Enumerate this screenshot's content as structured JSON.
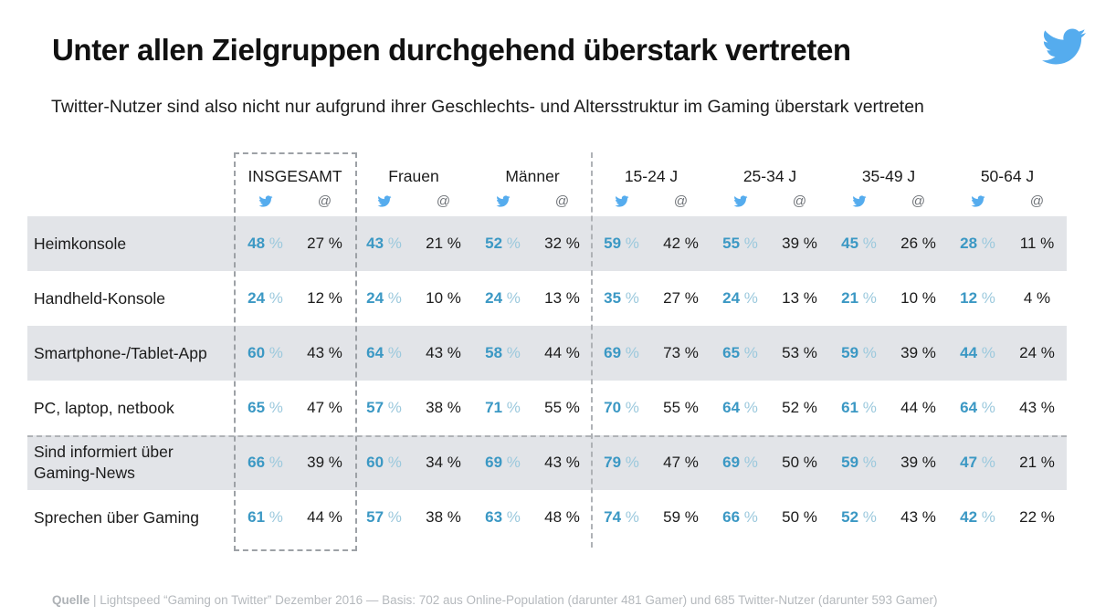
{
  "header": {
    "title": "Unter allen Zielgruppen durchgehend überstark vertreten",
    "subtitle": "Twitter-Nutzer sind also nicht nur aufgrund ihrer Geschlechts- und Altersstruktur im Gaming überstark vertreten"
  },
  "footer": {
    "source_label": "Quelle",
    "source_text": " | Lightspeed “Gaming on Twitter” Dezember 2016 — Basis: 702 aus Online-Population (darunter 481 Gamer) und 685 Twitter-Nutzer (darunter 593 Gamer)"
  },
  "colors": {
    "twitter_blue": "#55ACEE",
    "value_blue": "#3B98C4",
    "value_blue_unit": "#9CC9DD",
    "value_black": "#1B1B1B",
    "stripe_gray": "#E2E4E8"
  },
  "chart_data": {
    "type": "table",
    "title": "Unter allen Zielgruppen durchgehend überstark vertreten",
    "subtitle": "Twitter-Nutzer sind also nicht nur aufgrund ihrer Geschlechts- und Altersstruktur im Gaming überstark vertreten",
    "unit": "%",
    "groups": [
      "INSGESAMT",
      "Frauen",
      "Männer",
      "15-24 J",
      "25-34 J",
      "35-49 J",
      "50-64 J"
    ],
    "sub_columns": [
      {
        "icon": "twitter-icon"
      },
      {
        "icon": "at-icon",
        "symbol": "@"
      }
    ],
    "rows": [
      {
        "label": "Heimkonsole",
        "values": [
          [
            48,
            27
          ],
          [
            43,
            21
          ],
          [
            52,
            32
          ],
          [
            59,
            42
          ],
          [
            55,
            39
          ],
          [
            45,
            26
          ],
          [
            28,
            11
          ]
        ]
      },
      {
        "label": "Handheld-Konsole",
        "values": [
          [
            24,
            12
          ],
          [
            24,
            10
          ],
          [
            24,
            13
          ],
          [
            35,
            27
          ],
          [
            24,
            13
          ],
          [
            21,
            10
          ],
          [
            12,
            4
          ]
        ]
      },
      {
        "label": "Smartphone-/Tablet-App",
        "values": [
          [
            60,
            43
          ],
          [
            64,
            43
          ],
          [
            58,
            44
          ],
          [
            69,
            73
          ],
          [
            65,
            53
          ],
          [
            59,
            39
          ],
          [
            44,
            24
          ]
        ]
      },
      {
        "label": "PC, laptop, netbook",
        "values": [
          [
            65,
            47
          ],
          [
            57,
            38
          ],
          [
            71,
            55
          ],
          [
            70,
            55
          ],
          [
            64,
            52
          ],
          [
            61,
            44
          ],
          [
            64,
            43
          ]
        ]
      },
      {
        "label": "Sind informiert über Gaming-News",
        "values": [
          [
            66,
            39
          ],
          [
            60,
            34
          ],
          [
            69,
            43
          ],
          [
            79,
            47
          ],
          [
            69,
            50
          ],
          [
            59,
            39
          ],
          [
            47,
            21
          ]
        ]
      },
      {
        "label": "Sprechen über Gaming",
        "values": [
          [
            61,
            44
          ],
          [
            57,
            38
          ],
          [
            63,
            48
          ],
          [
            74,
            59
          ],
          [
            66,
            50
          ],
          [
            52,
            43
          ],
          [
            42,
            22
          ]
        ]
      }
    ],
    "highlight_annotations": [
      "dashed box around INSGESAMT column",
      "dashed vertical divider before age groups",
      "dashed horizontal divider before behavior rows"
    ]
  }
}
